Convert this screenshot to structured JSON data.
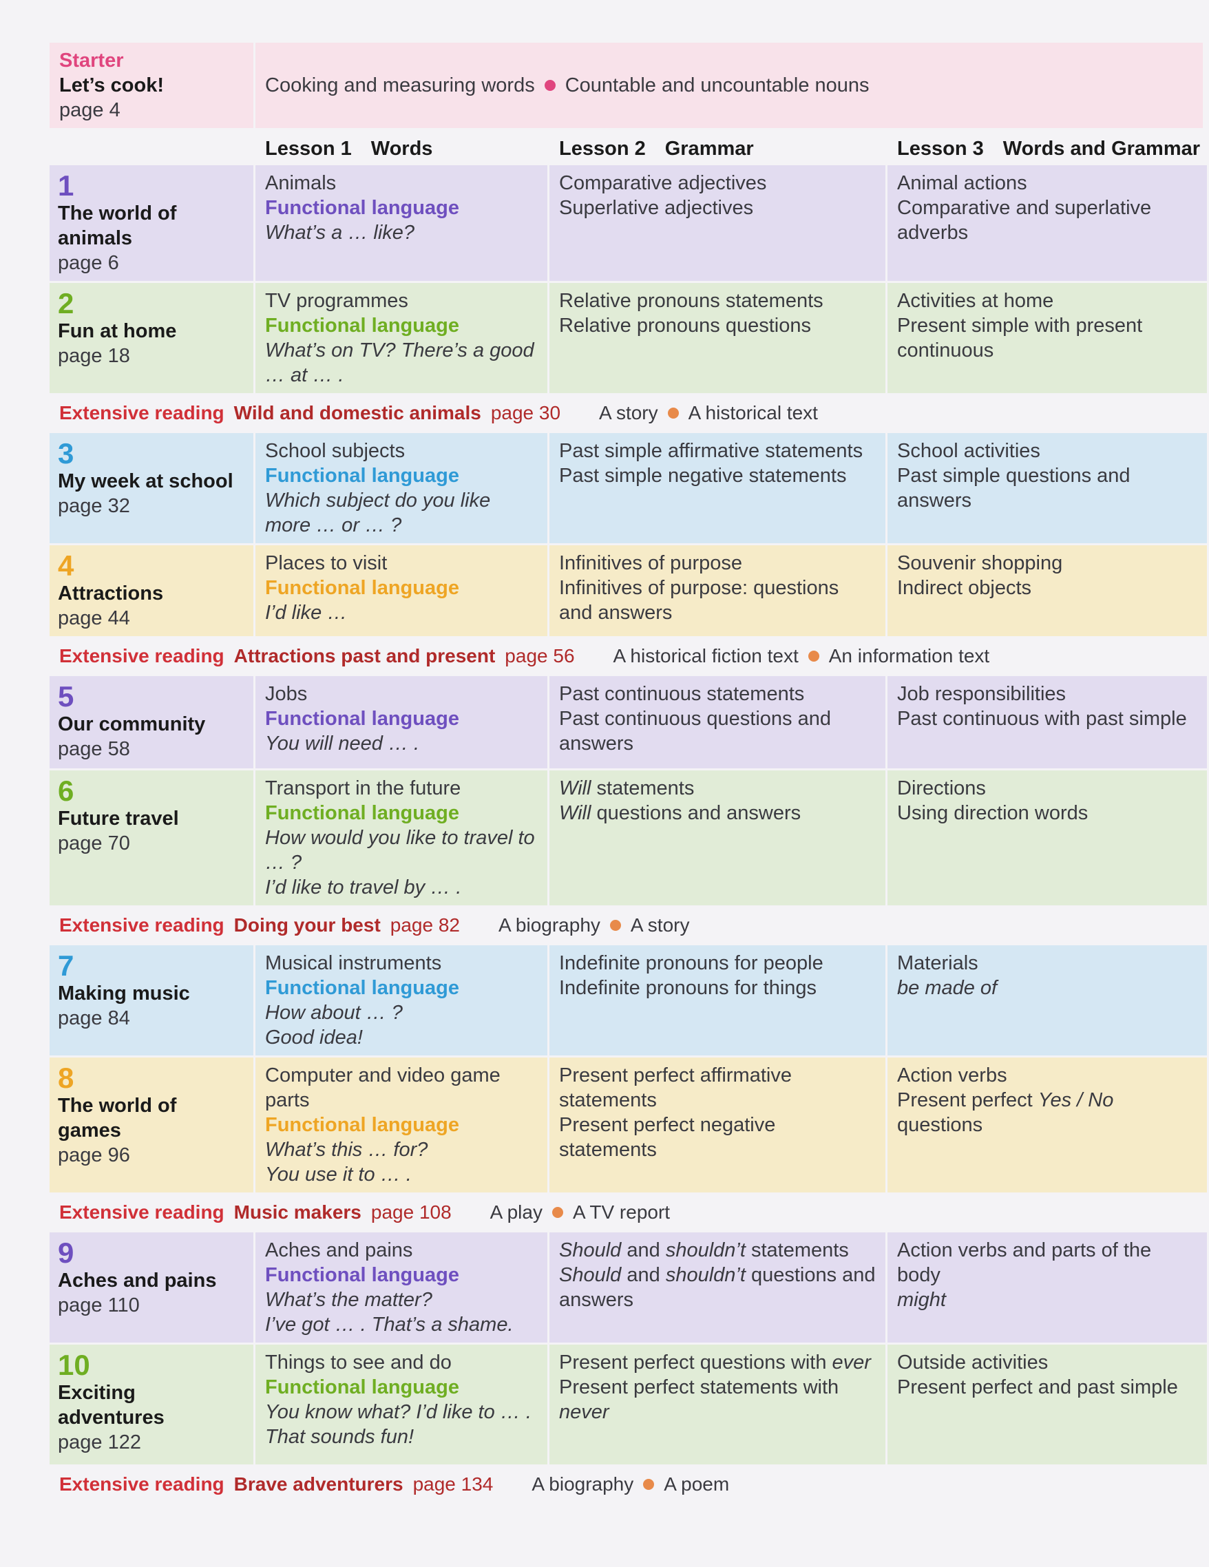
{
  "colors": {
    "starter": {
      "bg": "#f8e2ea",
      "accent": "#e0457e"
    },
    "purple": {
      "bg": "#e2dcf0",
      "accent": "#6e4fbf"
    },
    "green": {
      "bg": "#e1ecd7",
      "accent": "#6fae22"
    },
    "blue": {
      "bg": "#d5e7f3",
      "accent": "#2f9ad6"
    },
    "yellow": {
      "bg": "#f6ebc8",
      "accent": "#eea524"
    },
    "extensive_reading": "#d13038",
    "bullet": "#e88a4a"
  },
  "starter": {
    "label": "Starter",
    "title": "Let’s cook!",
    "page": "page 4",
    "topics": [
      "Cooking and measuring words",
      "Countable and uncountable nouns"
    ]
  },
  "header": {
    "lesson1": "Lesson 1",
    "lesson1_type": "Words",
    "lesson2": "Lesson 2",
    "lesson2_type": "Grammar",
    "lesson3": "Lesson 3",
    "lesson3_type": "Words and Grammar"
  },
  "functional_label": "Functional language",
  "blocks": [
    {
      "kind": "unit",
      "theme": "purple",
      "height": 168,
      "number": "1",
      "title": "The world of animals",
      "page": "page 6",
      "words_topic": "Animals",
      "phrases": [
        [
          {
            "t": "What’s a … like?",
            "i": true
          }
        ]
      ],
      "grammar": [
        [
          {
            "t": "Comparative adjectives"
          }
        ],
        [
          {
            "t": "Superlative adjectives"
          }
        ]
      ],
      "lesson3": [
        [
          {
            "t": "Animal actions"
          }
        ],
        [
          {
            "t": "Comparative and superlative adverbs"
          }
        ]
      ]
    },
    {
      "kind": "unit",
      "theme": "green",
      "height": 156,
      "number": "2",
      "title": "Fun at home",
      "page": "page 18",
      "words_topic": "TV programmes",
      "phrases": [
        [
          {
            "t": "What’s on TV? There’s a good … at … .",
            "i": true
          }
        ]
      ],
      "grammar": [
        [
          {
            "t": "Relative pronouns statements"
          }
        ],
        [
          {
            "t": "Relative pronouns questions"
          }
        ]
      ],
      "lesson3": [
        [
          {
            "t": "Activities at home"
          }
        ],
        [
          {
            "t": "Present simple with present continuous"
          }
        ]
      ]
    },
    {
      "kind": "reading",
      "label": "Extensive reading",
      "title": "Wild and domestic animals",
      "page": "page 30",
      "kinds": [
        "A story",
        "A historical text"
      ]
    },
    {
      "kind": "unit",
      "theme": "blue",
      "height": 156,
      "number": "3",
      "title": "My week at school",
      "page": "page 32",
      "words_topic": "School subjects",
      "phrases": [
        [
          {
            "t": "Which subject do you like more … or … ?",
            "i": true
          }
        ]
      ],
      "grammar": [
        [
          {
            "t": "Past simple affirmative statements"
          }
        ],
        [
          {
            "t": "Past simple negative statements"
          }
        ]
      ],
      "lesson3": [
        [
          {
            "t": "School activities"
          }
        ],
        [
          {
            "t": "Past simple questions and answers"
          }
        ]
      ]
    },
    {
      "kind": "unit",
      "theme": "yellow",
      "height": 130,
      "number": "4",
      "title": "Attractions",
      "page": "page 44",
      "words_topic": "Places to visit",
      "phrases": [
        [
          {
            "t": "I’d like …",
            "i": true
          }
        ]
      ],
      "grammar": [
        [
          {
            "t": "Infinitives of purpose"
          }
        ],
        [
          {
            "t": "Infinitives of purpose: questions and answers"
          }
        ]
      ],
      "lesson3": [
        [
          {
            "t": "Souvenir shopping"
          }
        ],
        [
          {
            "t": "Indirect objects"
          }
        ]
      ]
    },
    {
      "kind": "reading",
      "label": "Extensive reading",
      "title": "Attractions past and present",
      "page": "page 56",
      "kinds": [
        "A historical fiction text",
        "An information text"
      ]
    },
    {
      "kind": "unit",
      "theme": "purple",
      "height": 134,
      "number": "5",
      "title": "Our community",
      "page": "page 58",
      "words_topic": "Jobs",
      "phrases": [
        [
          {
            "t": "You will need … .",
            "i": true
          }
        ]
      ],
      "grammar": [
        [
          {
            "t": "Past continuous statements"
          }
        ],
        [
          {
            "t": "Past continuous questions and answers"
          }
        ]
      ],
      "lesson3": [
        [
          {
            "t": "Job responsibilities"
          }
        ],
        [
          {
            "t": "Past continuous with past simple"
          }
        ]
      ]
    },
    {
      "kind": "unit",
      "theme": "green",
      "height": 190,
      "number": "6",
      "title": "Future travel",
      "page": "page 70",
      "words_topic": "Transport in the future",
      "phrases": [
        [
          {
            "t": "How would you like to travel to … ?",
            "i": true
          }
        ],
        [
          {
            "t": "I’d like to travel by … .",
            "i": true
          }
        ]
      ],
      "grammar": [
        [
          {
            "t": "Will",
            "i": true
          },
          {
            "t": " statements"
          }
        ],
        [
          {
            "t": "Will",
            "i": true
          },
          {
            "t": " questions and answers"
          }
        ]
      ],
      "lesson3": [
        [
          {
            "t": "Directions"
          }
        ],
        [
          {
            "t": "Using direction words"
          }
        ]
      ]
    },
    {
      "kind": "reading",
      "label": "Extensive reading",
      "title": "Doing your best",
      "page": "page 82",
      "kinds": [
        "A biography",
        "A story"
      ]
    },
    {
      "kind": "unit",
      "theme": "blue",
      "height": 154,
      "number": "7",
      "title": "Making music",
      "page": "page 84",
      "words_topic": "Musical instruments",
      "phrases": [
        [
          {
            "t": "How about … ?",
            "i": true
          }
        ],
        [
          {
            "t": "Good idea!",
            "i": true
          }
        ]
      ],
      "grammar": [
        [
          {
            "t": "Indefinite pronouns for people"
          }
        ],
        [
          {
            "t": "Indefinite pronouns for things"
          }
        ]
      ],
      "lesson3": [
        [
          {
            "t": "Materials"
          }
        ],
        [
          {
            "t": "be made of",
            "i": true
          }
        ]
      ]
    },
    {
      "kind": "unit",
      "theme": "yellow",
      "height": 196,
      "number": "8",
      "title": "The world of games",
      "page": "page 96",
      "words_topic": "Computer and video game parts",
      "phrases": [
        [
          {
            "t": "What’s this … for?",
            "i": true
          }
        ],
        [
          {
            "t": "You use it to … .",
            "i": true
          }
        ]
      ],
      "grammar": [
        [
          {
            "t": "Present perfect affirmative statements"
          }
        ],
        [
          {
            "t": "Present perfect negative statements"
          }
        ]
      ],
      "lesson3": [
        [
          {
            "t": "Action verbs"
          }
        ],
        [
          {
            "t": "Present perfect "
          },
          {
            "t": "Yes / No",
            "i": true
          },
          {
            "t": " questions"
          }
        ]
      ]
    },
    {
      "kind": "reading",
      "label": "Extensive reading",
      "title": "Music makers",
      "page": "page 108",
      "kinds": [
        "A play",
        "A TV report"
      ]
    },
    {
      "kind": "unit",
      "theme": "purple",
      "height": 158,
      "number": "9",
      "title": "Aches and pains",
      "page": "page 110",
      "words_topic": "Aches and pains",
      "phrases": [
        [
          {
            "t": "What’s the matter?",
            "i": true
          }
        ],
        [
          {
            "t": "I’ve got … . That’s a shame.",
            "i": true
          }
        ]
      ],
      "grammar": [
        [
          {
            "t": "Should",
            "i": true
          },
          {
            "t": " and "
          },
          {
            "t": "shouldn’t",
            "i": true
          },
          {
            "t": " statements"
          }
        ],
        [
          {
            "t": "Should",
            "i": true
          },
          {
            "t": " and "
          },
          {
            "t": "shouldn’t",
            "i": true
          },
          {
            "t": " questions and answers"
          }
        ]
      ],
      "lesson3": [
        [
          {
            "t": "Action verbs and parts of the body"
          }
        ],
        [
          {
            "t": "might",
            "i": true
          }
        ]
      ]
    },
    {
      "kind": "unit",
      "theme": "green",
      "height": 174,
      "number": "10",
      "title": "Exciting adventures",
      "page": "page 122",
      "words_topic": "Things to see and do",
      "phrases": [
        [
          {
            "t": "You know what? I’d like to … .",
            "i": true
          }
        ],
        [
          {
            "t": "That sounds fun!",
            "i": true
          }
        ]
      ],
      "grammar": [
        [
          {
            "t": "Present perfect questions with "
          },
          {
            "t": "ever",
            "i": true
          }
        ],
        [
          {
            "t": "Present perfect statements with "
          },
          {
            "t": "never",
            "i": true
          }
        ]
      ],
      "lesson3": [
        [
          {
            "t": "Outside activities"
          }
        ],
        [
          {
            "t": "Present perfect and past simple"
          }
        ]
      ]
    },
    {
      "kind": "reading",
      "label": "Extensive reading",
      "title": "Brave adventurers",
      "page": "page 134",
      "kinds": [
        "A biography",
        "A poem"
      ]
    }
  ]
}
